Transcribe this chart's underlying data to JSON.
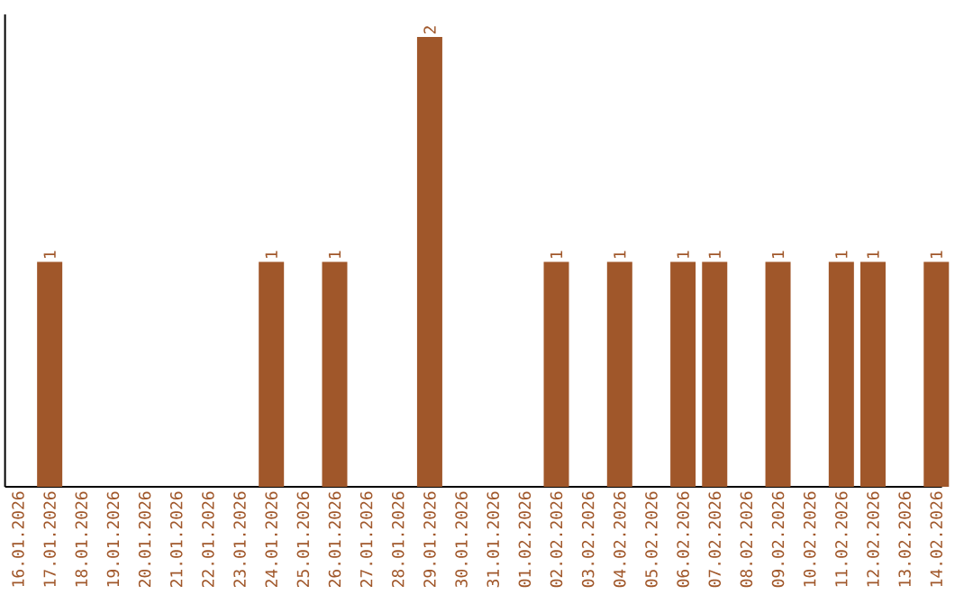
{
  "chart_data": {
    "type": "bar",
    "categories": [
      "16.01.2026",
      "17.01.2026",
      "18.01.2026",
      "19.01.2026",
      "20.01.2026",
      "21.01.2026",
      "22.01.2026",
      "23.01.2026",
      "24.01.2026",
      "25.01.2026",
      "26.01.2026",
      "27.01.2026",
      "28.01.2026",
      "29.01.2026",
      "30.01.2026",
      "31.01.2026",
      "01.02.2026",
      "02.02.2026",
      "03.02.2026",
      "04.02.2026",
      "05.02.2026",
      "06.02.2026",
      "07.02.2026",
      "08.02.2026",
      "09.02.2026",
      "10.02.2026",
      "11.02.2026",
      "12.02.2026",
      "13.02.2026",
      "14.02.2026"
    ],
    "values": [
      0,
      1,
      0,
      0,
      0,
      0,
      0,
      0,
      1,
      0,
      1,
      0,
      0,
      2,
      0,
      0,
      0,
      1,
      0,
      1,
      0,
      1,
      1,
      0,
      1,
      0,
      1,
      1,
      0,
      1
    ],
    "value_labels": [
      null,
      "1",
      null,
      null,
      null,
      null,
      null,
      null,
      "1",
      null,
      "1",
      null,
      null,
      "2",
      null,
      null,
      null,
      "1",
      null,
      "1",
      null,
      "1",
      "1",
      null,
      "1",
      null,
      "1",
      "1",
      null,
      "1"
    ],
    "color": "#a0572a",
    "ylim": [
      0,
      2.1
    ],
    "tick_labels": "x"
  }
}
